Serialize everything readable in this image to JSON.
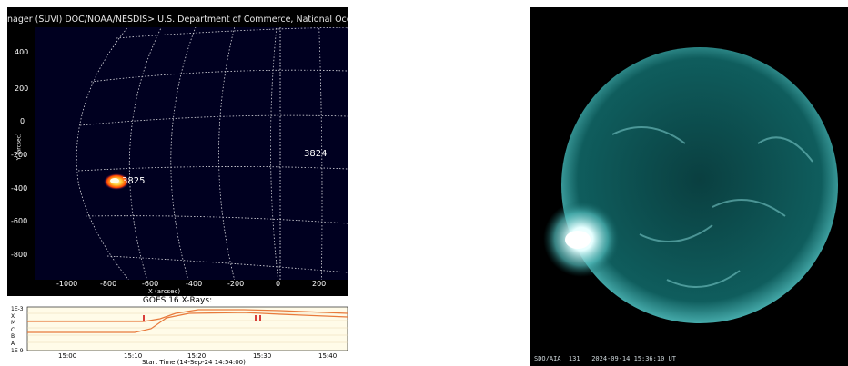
{
  "suvi_panel": {
    "header": "nager (SUVI) DOC/NOAA/NESDIS> U.S. Department of Commerce, National Oceanic and",
    "y_ticks": [
      "400",
      "200",
      "0",
      "-200",
      "-400",
      "-600",
      "-800"
    ],
    "x_ticks": [
      "-1000",
      "-800",
      "-600",
      "-400",
      "-200",
      "0",
      "200"
    ],
    "x_label": "X (arcsec)",
    "y_label": "Y (arcsec)",
    "regions": [
      "3825",
      "3824"
    ]
  },
  "goes_panel": {
    "title": "GOES 16 X-Rays:",
    "y_labels": [
      "1E-3",
      "X",
      "M",
      "C",
      "B",
      "A",
      "1E-9"
    ],
    "x_ticks": [
      "15:00",
      "15:10",
      "15:20",
      "15:30",
      "15:40"
    ],
    "start_time": "Start Time (14-Sep-24 14:54:00)"
  },
  "sdo_panel": {
    "caption": "SDO/AIA  131   2024-09-14 15:36:10 UT",
    "colors": {
      "disk": "#0f5d5d",
      "limb": "#4fb8b8",
      "flare": "#e6ffff"
    }
  }
}
